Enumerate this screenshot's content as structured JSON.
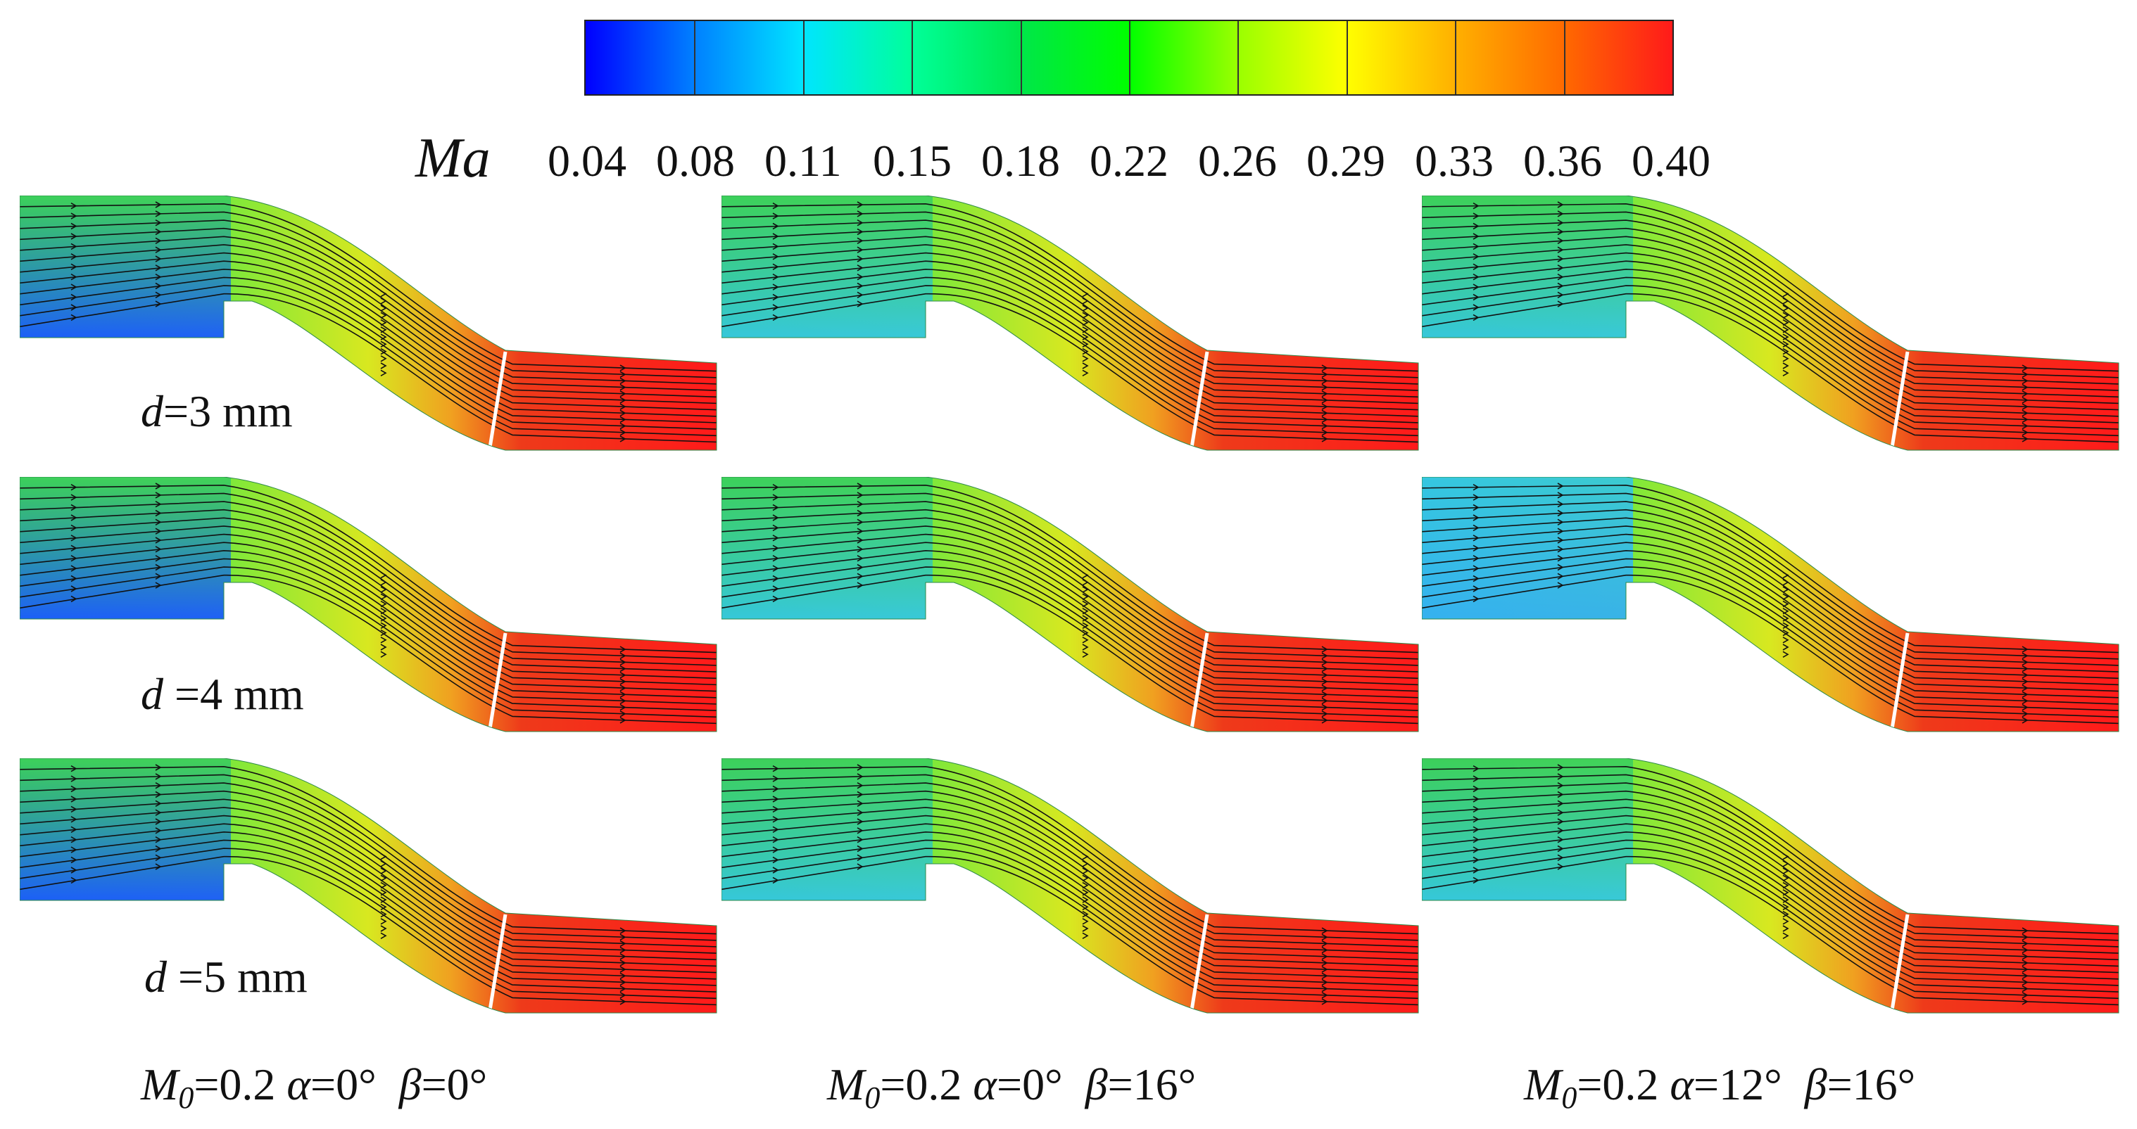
{
  "colorbar": {
    "variable": "Ma",
    "ticks": [
      "0.04",
      "0.08",
      "0.11",
      "0.15",
      "0.18",
      "0.22",
      "0.26",
      "0.29",
      "0.33",
      "0.36",
      "0.40"
    ],
    "colors": [
      "#0000ff",
      "#0080ff",
      "#00e5ff",
      "#00ff9a",
      "#00e64a",
      "#00ff00",
      "#9aff00",
      "#ffff00",
      "#ffb000",
      "#ff6a00",
      "#ff1a1a"
    ]
  },
  "rows": [
    {
      "d_symbol": "d",
      "d_value": "=3 mm"
    },
    {
      "d_symbol": "d",
      "d_value": " =4 mm"
    },
    {
      "d_symbol": "d",
      "d_value": " =5 mm"
    }
  ],
  "columns": [
    {
      "m_symbol": "M",
      "m_sub": "0",
      "m_val": "=0.2 ",
      "alpha_sym": "α",
      "alpha_val": "=0°",
      "beta_sym": "β",
      "beta_val": "=0°"
    },
    {
      "m_symbol": "M",
      "m_sub": "0",
      "m_val": "=0.2 ",
      "alpha_sym": "α",
      "alpha_val": "=0°",
      "beta_sym": "β",
      "beta_val": "=16°"
    },
    {
      "m_symbol": "M",
      "m_sub": "0",
      "m_val": "=0.2 ",
      "alpha_sym": "α",
      "alpha_val": "=12°",
      "beta_sym": "β",
      "beta_val": "=16°"
    }
  ],
  "panels": [
    {
      "inlet_top": "#3cd05a",
      "inlet_bottom": "#1a5aff"
    },
    {
      "inlet_top": "#3cd05a",
      "inlet_bottom": "#35c7e0"
    },
    {
      "inlet_top": "#3cd05a",
      "inlet_bottom": "#35c7e0"
    },
    {
      "inlet_top": "#3cd05a",
      "inlet_bottom": "#1a5aff"
    },
    {
      "inlet_top": "#3cd05a",
      "inlet_bottom": "#35c7e0"
    },
    {
      "inlet_top": "#35c7e0",
      "inlet_bottom": "#35b0f0"
    },
    {
      "inlet_top": "#3cd05a",
      "inlet_bottom": "#1a5aff"
    },
    {
      "inlet_top": "#3cd05a",
      "inlet_bottom": "#35c7e0"
    },
    {
      "inlet_top": "#3cd05a",
      "inlet_bottom": "#35c7e0"
    }
  ]
}
